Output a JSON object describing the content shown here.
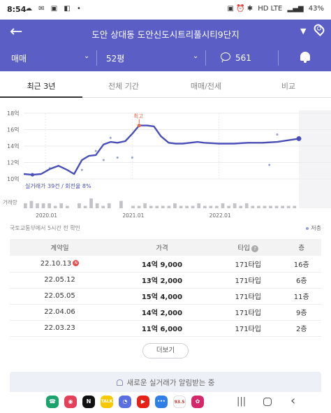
{
  "status_bar": {
    "time": "8:54",
    "left_icons": [
      "cloud-icon",
      "chat-icon",
      "image-icon",
      "pay-icon",
      "dot-icon"
    ],
    "left_glyphs": "☁ ✉ ▣ ◧ •",
    "right_glyphs": "▣ ⏰ ✱ ",
    "network": "HD LTE",
    "signal": "▂▄▆",
    "battery": "43%"
  },
  "header": {
    "title": "도안 상대동 도안신도시트리풀시티9단지"
  },
  "subheader": {
    "trade_type": "매매",
    "area": "52평",
    "comments": "561"
  },
  "tabs": [
    {
      "label": "최근 3년",
      "active": true
    },
    {
      "label": "전체 기간",
      "active": false
    },
    {
      "label": "매매/전세",
      "active": false
    },
    {
      "label": "비교",
      "active": false
    }
  ],
  "chart_data": {
    "type": "line",
    "title": "",
    "ylabel": "",
    "y_ticks": [
      "18억",
      "16억",
      "14억",
      "12억",
      "10억"
    ],
    "ylim": [
      10,
      18
    ],
    "x_ticks": [
      "2020.01",
      "2021.01",
      "2022.01"
    ],
    "x_range": [
      2019.75,
      2022.92
    ],
    "grid": true,
    "peak_label": "최고",
    "summary": "실거래가 39건 / 회전율 8%",
    "volume_label": "거래량",
    "series": [
      {
        "x": [
          2019.75,
          2019.85,
          2019.95,
          2020.05,
          2020.15,
          2020.25,
          2020.33,
          2020.42,
          2020.5,
          2020.58,
          2020.67,
          2020.75,
          2020.83,
          2020.92,
          2021.0,
          2021.08,
          2021.17,
          2021.25,
          2021.33,
          2021.42,
          2021.5,
          2021.58,
          2021.67,
          2021.75,
          2021.83,
          2022.0,
          2022.17,
          2022.33,
          2022.5,
          2022.67,
          2022.92
        ],
        "values": [
          10.6,
          10.5,
          10.6,
          11.2,
          11.6,
          11.1,
          10.6,
          12.3,
          12.8,
          12.9,
          14.2,
          14.5,
          14.4,
          14.6,
          15.5,
          16.5,
          16.5,
          16.4,
          15.2,
          14.4,
          14.3,
          14.3,
          14.4,
          14.5,
          14.4,
          14.3,
          14.3,
          14.4,
          14.4,
          14.5,
          14.9
        ]
      }
    ],
    "scatter": {
      "x": [
        2020.05,
        2020.42,
        2020.58,
        2020.67,
        2020.75,
        2020.83,
        2021.0,
        2022.58,
        2022.67
      ],
      "values": [
        11.3,
        11.1,
        13.4,
        12.3,
        15.0,
        12.6,
        12.6,
        11.7,
        15.4
      ]
    },
    "volume": [
      2,
      3,
      2,
      2,
      2,
      1,
      2,
      1,
      0,
      2,
      1,
      4,
      2,
      1,
      2,
      0,
      3,
      0,
      1,
      1,
      2,
      1,
      1,
      1,
      1,
      2,
      1,
      1,
      1,
      2,
      1,
      1,
      1,
      2,
      1,
      2,
      1,
      2,
      1,
      1,
      1,
      1,
      1,
      1,
      1,
      1
    ]
  },
  "chart_meta": {
    "source": "국토교통부에서 5시간 전 확인",
    "legend_label": "저층"
  },
  "deals": {
    "headers": [
      "계약일",
      "가격",
      "타입",
      "층"
    ],
    "rows": [
      {
        "date": "22.10.13",
        "price": "14억 9,000",
        "type": "171타입",
        "floor": "16층",
        "new": true
      },
      {
        "date": "22.05.12",
        "price": "13억 2,000",
        "type": "171타입",
        "floor": "6층",
        "new": false
      },
      {
        "date": "22.05.05",
        "price": "15억 4,000",
        "type": "171타입",
        "floor": "11층",
        "new": false
      },
      {
        "date": "22.04.06",
        "price": "14억 2,000",
        "type": "171타입",
        "floor": "9층",
        "new": false
      },
      {
        "date": "22.03.23",
        "price": "11억 6,000",
        "type": "171타입",
        "floor": "2층",
        "new": false
      }
    ],
    "new_badge": "N",
    "help": "?"
  },
  "more_button": "더보기",
  "alert_text": "새로운 실거래가 알림받는 중",
  "navbar": {
    "apps": [
      {
        "name": "phone-app-icon",
        "color": "#1aa36a",
        "glyph": "☎"
      },
      {
        "name": "camera-app-icon",
        "color": "#e4405a",
        "glyph": "◉"
      },
      {
        "name": "netflix-app-icon",
        "color": "#111111",
        "glyph": "N"
      },
      {
        "name": "kakaotalk-app-icon",
        "color": "#f7c800",
        "glyph": "TALK"
      },
      {
        "name": "messages-app-icon",
        "color": "#5a6fe0",
        "glyph": "◔"
      },
      {
        "name": "youtube-app-icon",
        "color": "#e62117",
        "glyph": "▶"
      },
      {
        "name": "chat-app-icon",
        "color": "#2f7fe6",
        "glyph": "•••"
      },
      {
        "name": "radio-app-icon",
        "color": "#ffffff",
        "glyph": "93.5"
      },
      {
        "name": "flower-app-icon",
        "color": "#d4286b",
        "glyph": "✿"
      }
    ],
    "recent_glyph": "|||",
    "back_glyph": "‹"
  }
}
